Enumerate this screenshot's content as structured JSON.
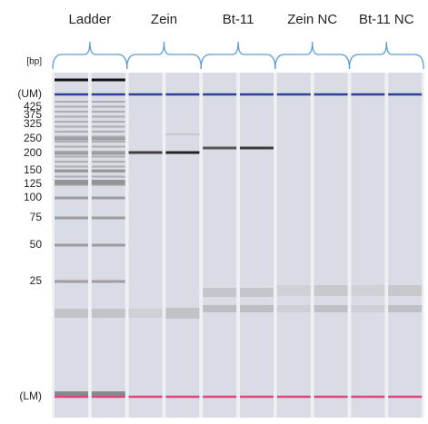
{
  "header": {
    "groups": [
      "Ladder",
      "Zein",
      "Bt-11",
      "Zein NC",
      "Bt-11 NC"
    ],
    "unit": "[bp]"
  },
  "axis": {
    "labels": [
      "(UM)",
      "425",
      "375",
      "325",
      "250",
      "200",
      "150",
      "125",
      "100",
      "75",
      "50",
      "25",
      "(LM)"
    ]
  }
}
